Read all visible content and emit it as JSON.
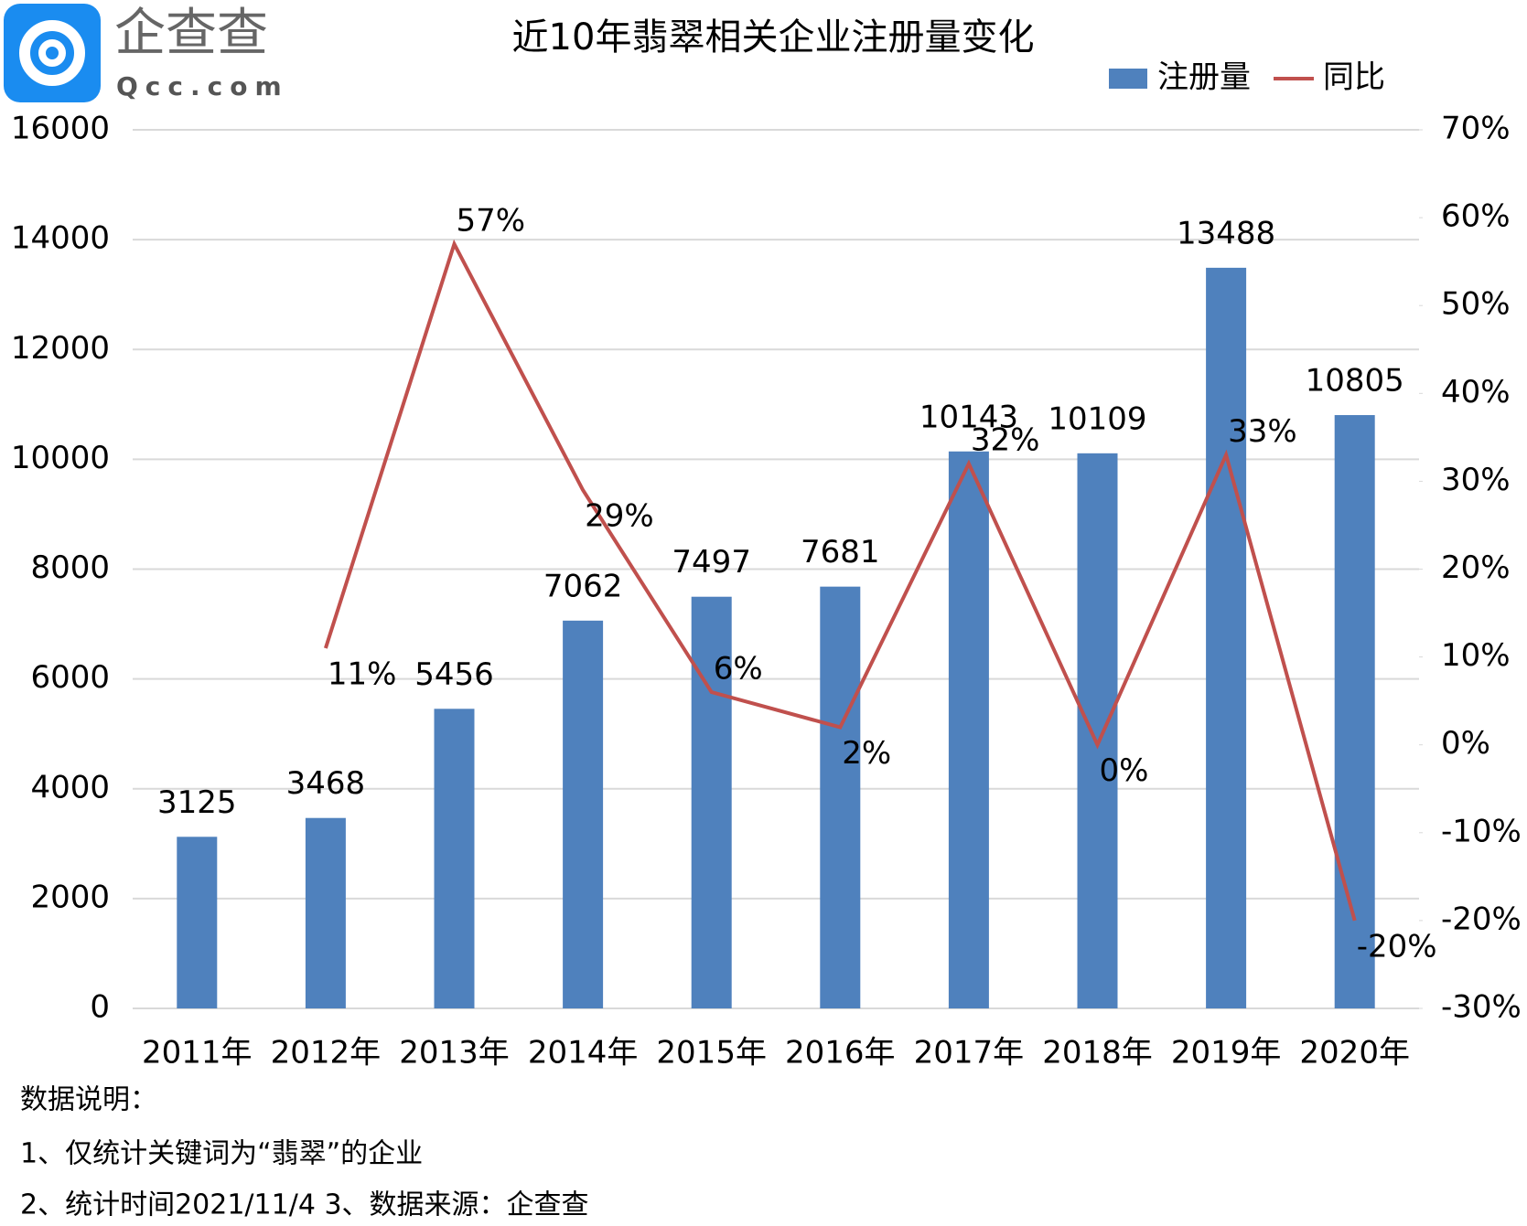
{
  "chart_data": {
    "type": "bar",
    "title": "近10年翡翠相关企业注册量变化",
    "logo": {
      "name": "企查查",
      "site": "Qcc.com"
    },
    "categories": [
      "2011年",
      "2012年",
      "2013年",
      "2014年",
      "2015年",
      "2016年",
      "2017年",
      "2018年",
      "2019年",
      "2020年"
    ],
    "series": [
      {
        "name": "注册量",
        "type": "bar",
        "color": "#4f81bd",
        "values": [
          3125,
          3468,
          5456,
          7062,
          7497,
          7681,
          10143,
          10109,
          13488,
          10805
        ]
      },
      {
        "name": "同比",
        "type": "line",
        "axis": "y2",
        "color": "#c0504d",
        "values": [
          null,
          11,
          57,
          29,
          6,
          2,
          32,
          0,
          33,
          -20
        ],
        "value_labels": [
          null,
          "11%",
          "57%",
          "29%",
          "6%",
          "2%",
          "32%",
          "0%",
          "33%",
          "-20%"
        ]
      }
    ],
    "ylim": [
      0,
      16000
    ],
    "yticks": [
      0,
      2000,
      4000,
      6000,
      8000,
      10000,
      12000,
      14000,
      16000
    ],
    "y2lim": [
      -30,
      70
    ],
    "y2ticks": [
      {
        "value": -30,
        "label": "-30%"
      },
      {
        "value": -20,
        "label": "-20%"
      },
      {
        "value": -10,
        "label": "-10%"
      },
      {
        "value": 0,
        "label": "0%"
      },
      {
        "value": 10,
        "label": "10%"
      },
      {
        "value": 20,
        "label": "20%"
      },
      {
        "value": 30,
        "label": "30%"
      },
      {
        "value": 40,
        "label": "40%"
      },
      {
        "value": 50,
        "label": "50%"
      },
      {
        "value": 60,
        "label": "60%"
      },
      {
        "value": 70,
        "label": "70%"
      }
    ],
    "grid": true,
    "legend": "top-right",
    "notes": [
      "数据说明：",
      "1、仅统计关键词为“翡翠”的企业",
      "2、统计时间2021/11/4  3、数据来源：企查查"
    ]
  }
}
